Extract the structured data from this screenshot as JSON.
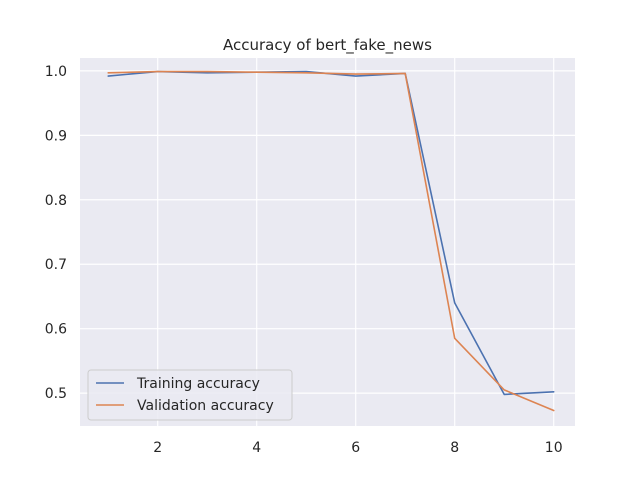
{
  "chart_data": {
    "type": "line",
    "title": "Accuracy of bert_fake_news",
    "xlabel": "",
    "ylabel": "",
    "x": [
      1,
      2,
      3,
      4,
      5,
      6,
      7,
      8,
      9,
      10
    ],
    "xlim": [
      0.43,
      10.43
    ],
    "ylim": [
      0.449,
      1.02
    ],
    "xticks": [
      2,
      4,
      6,
      8,
      10
    ],
    "yticks": [
      0.5,
      0.6,
      0.7,
      0.8,
      0.9,
      1.0
    ],
    "xtick_labels": [
      "2",
      "4",
      "6",
      "8",
      "10"
    ],
    "ytick_labels": [
      "0.5",
      "0.6",
      "0.7",
      "0.8",
      "0.9",
      "1.0"
    ],
    "grid": true,
    "legend_position": "lower-left",
    "background_color": "#eaeaf2",
    "grid_color": "#ffffff",
    "series": [
      {
        "name": "Training accuracy",
        "color": "#4c72b0",
        "values": [
          0.992,
          0.999,
          0.997,
          0.998,
          0.999,
          0.992,
          0.996,
          0.64,
          0.498,
          0.502
        ]
      },
      {
        "name": "Validation accuracy",
        "color": "#dd8452",
        "values": [
          0.997,
          0.999,
          0.999,
          0.998,
          0.997,
          0.995,
          0.996,
          0.585,
          0.505,
          0.473
        ]
      }
    ]
  }
}
